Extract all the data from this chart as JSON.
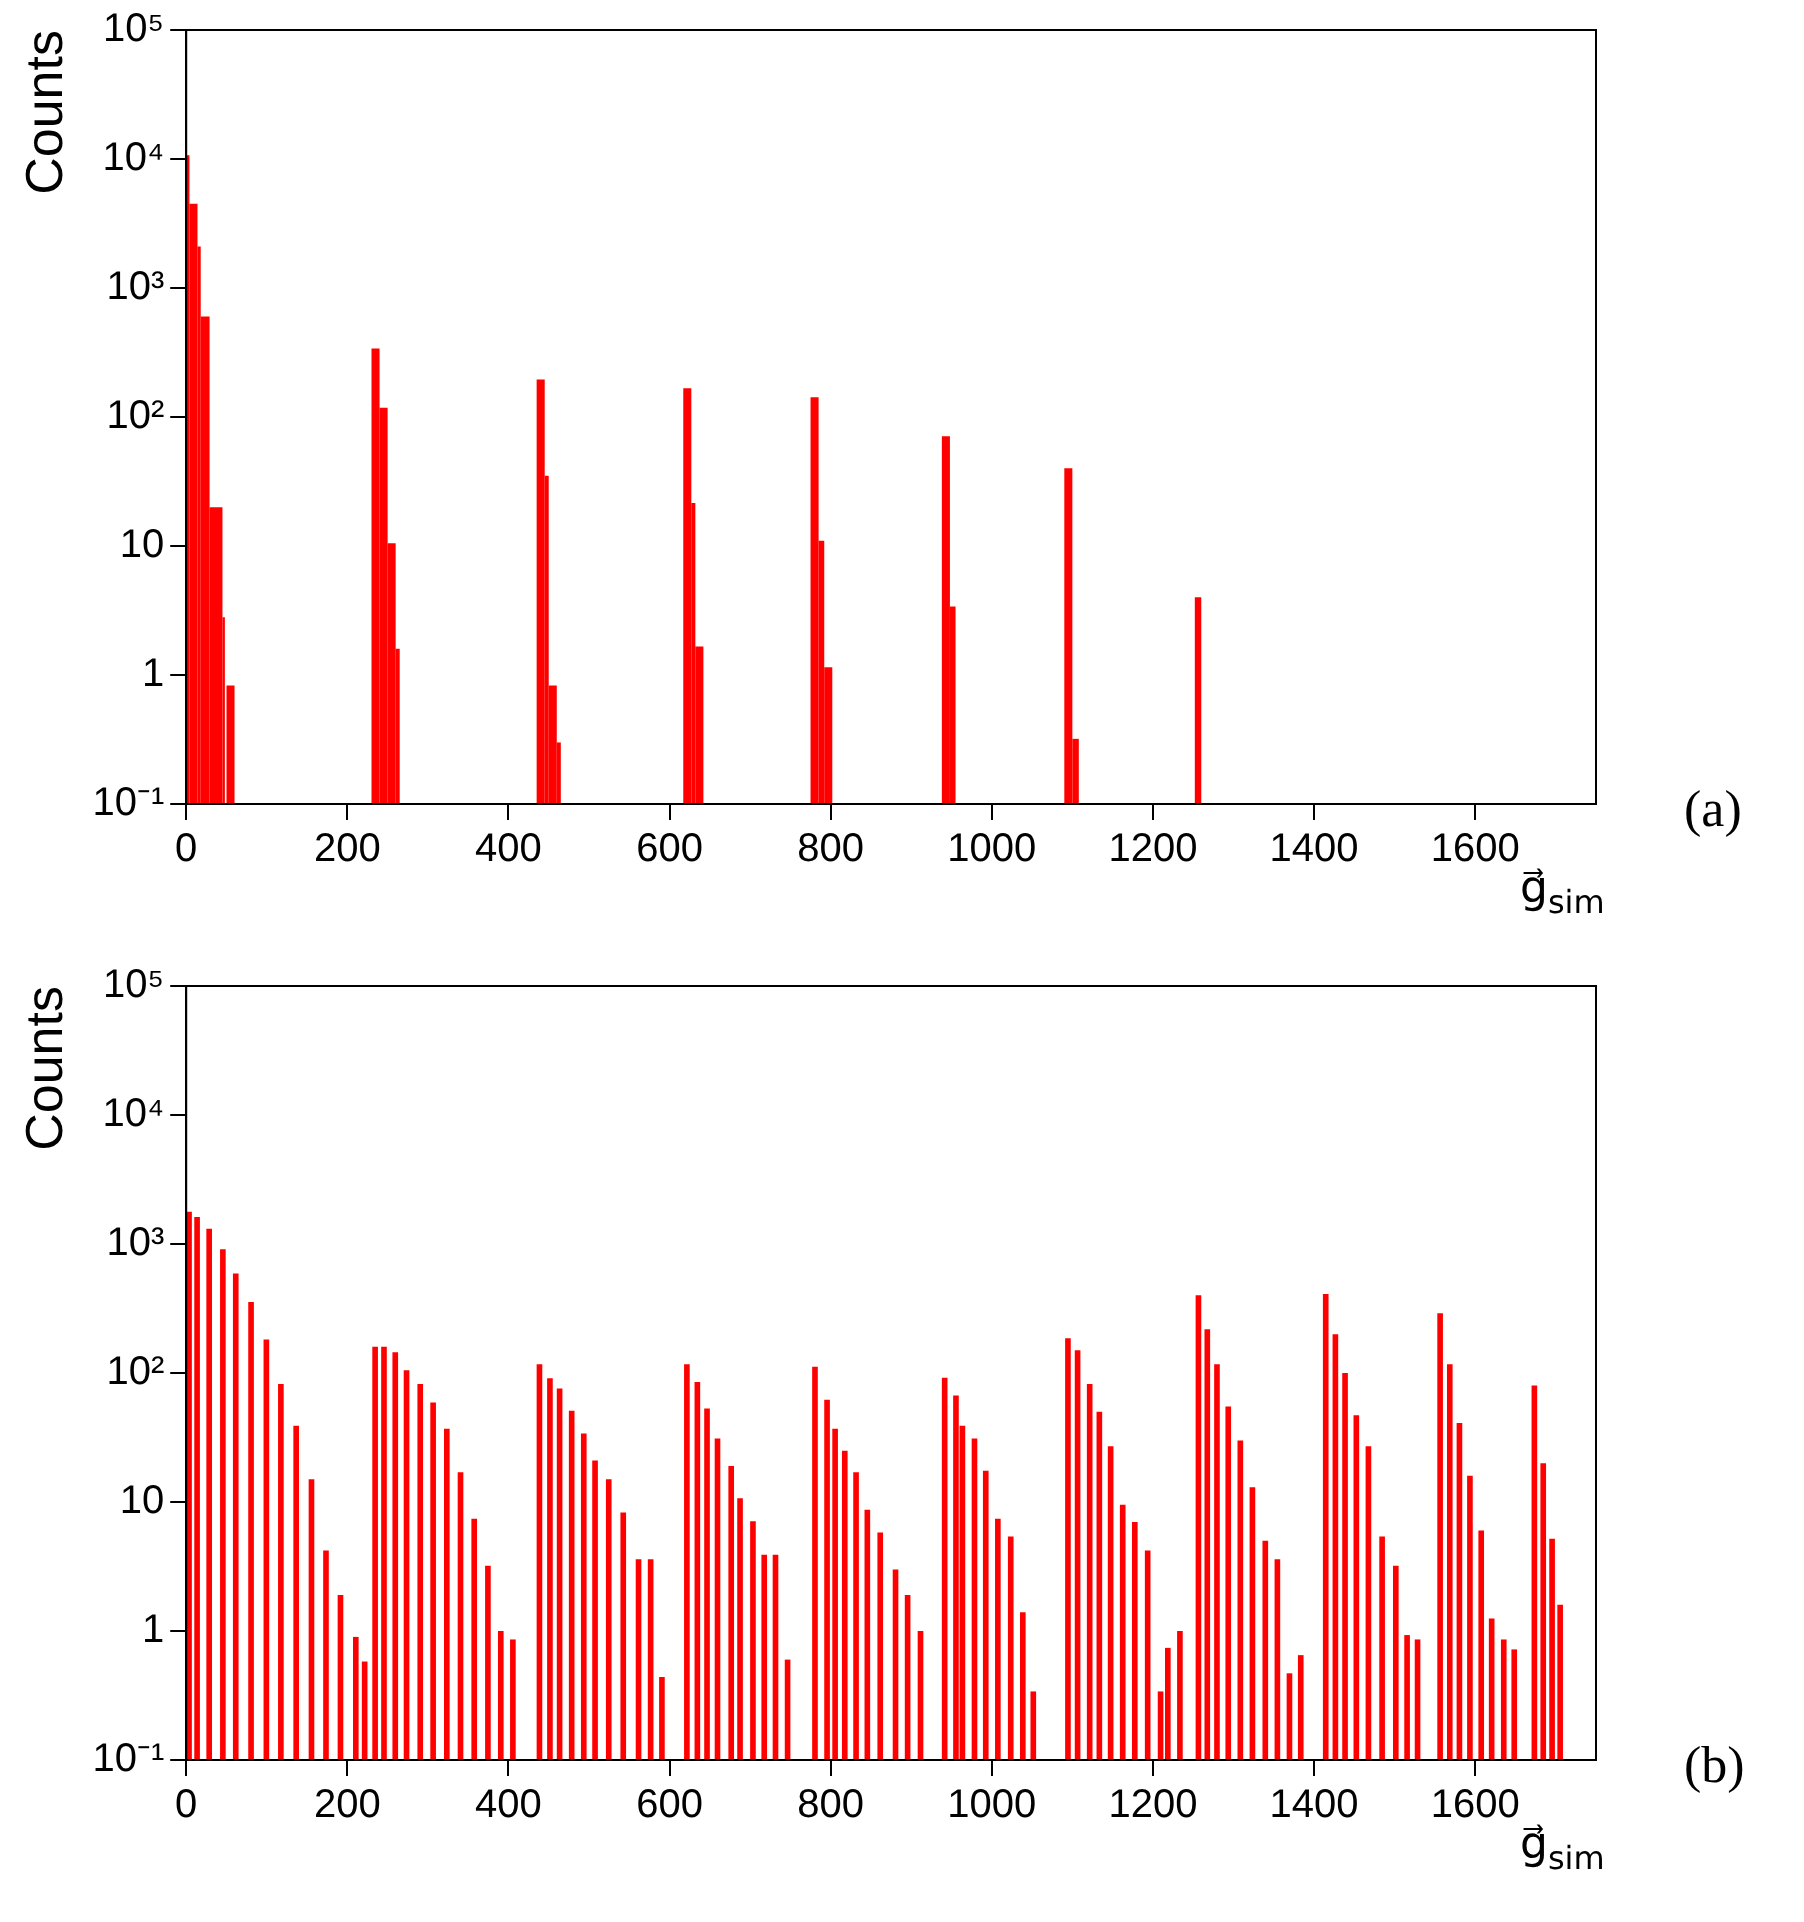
{
  "chart_data": [
    {
      "type": "histogram",
      "ylabel": "Counts",
      "xlabel": "g⃗$_{sim}$",
      "annotations": [
        "(a)"
      ],
      "color": "#ff0000",
      "log": true,
      "grid": false,
      "legend": false,
      "xlim": [
        0,
        1750
      ],
      "xticks": [
        0,
        200,
        400,
        600,
        800,
        1000,
        1200,
        1400,
        1600
      ],
      "ylim": [
        0.1,
        100000
      ],
      "yticks": [
        {
          "value": 0.1,
          "label": "10⁻¹"
        },
        {
          "value": 1,
          "label": "1"
        },
        {
          "value": 10,
          "label": "10"
        },
        {
          "value": 100,
          "label": "10²"
        },
        {
          "value": 1000,
          "label": "10³"
        },
        {
          "value": 10000,
          "label": "10⁴"
        },
        {
          "value": 100000,
          "label": "10⁵"
        }
      ],
      "bins": [
        0,
        4,
        14,
        18,
        29,
        45,
        48,
        50,
        60,
        230,
        240,
        250,
        260,
        265,
        435,
        445,
        450,
        460,
        465,
        617,
        627,
        632,
        642,
        775,
        785,
        792,
        802,
        938,
        948,
        955,
        1090,
        1100,
        1108,
        1252,
        1260
      ],
      "values": [
        10700,
        4500,
        2100,
        600,
        20,
        2.8,
        null,
        0.83,
        null,
        340,
        118,
        10.5,
        1.6,
        null,
        195,
        35,
        0.83,
        0.3,
        null,
        167,
        21.5,
        1.66,
        null,
        142,
        11,
        1.15,
        null,
        71,
        3.4,
        null,
        40,
        0.32,
        null,
        4
      ]
    },
    {
      "type": "histogram",
      "ylabel": "Counts",
      "xlabel": "g⃗$_{sim}$",
      "annotations": [
        "(b)"
      ],
      "color": "#ff0000",
      "log": true,
      "grid": false,
      "legend": false,
      "xlim": [
        0,
        1750
      ],
      "xticks": [
        0,
        200,
        400,
        600,
        800,
        1000,
        1200,
        1400,
        1600
      ],
      "ylim": [
        0.1,
        100000
      ],
      "yticks": [
        {
          "value": 0.1,
          "label": "10⁻¹"
        },
        {
          "value": 1,
          "label": "1"
        },
        {
          "value": 10,
          "label": "10"
        },
        {
          "value": 100,
          "label": "10²"
        },
        {
          "value": 1000,
          "label": "10³"
        },
        {
          "value": 10000,
          "label": "10⁴"
        },
        {
          "value": 100000,
          "label": "10⁵"
        }
      ],
      "bins": [
        0,
        7,
        10,
        17,
        25,
        32,
        42,
        49,
        58,
        65,
        77,
        84,
        96,
        103,
        114,
        121,
        133,
        140,
        152,
        159,
        170,
        177,
        188,
        195,
        207,
        214,
        218,
        225,
        231,
        238,
        242,
        249,
        256,
        263,
        270,
        277,
        287,
        294,
        303,
        310,
        320,
        327,
        337,
        344,
        354,
        361,
        371,
        378,
        387,
        394,
        402,
        409,
        435,
        442,
        448,
        455,
        460,
        467,
        475,
        482,
        490,
        497,
        504,
        511,
        521,
        528,
        539,
        546,
        558,
        565,
        573,
        580,
        587,
        594,
        618,
        625,
        631,
        638,
        643,
        650,
        656,
        663,
        673,
        680,
        684,
        691,
        700,
        707,
        714,
        721,
        728,
        735,
        743,
        750,
        777,
        784,
        792,
        799,
        802,
        809,
        814,
        821,
        828,
        835,
        842,
        849,
        858,
        865,
        877,
        884,
        892,
        899,
        908,
        915,
        938,
        945,
        952,
        959,
        960,
        967,
        975,
        982,
        989,
        996,
        1004,
        1011,
        1020,
        1027,
        1035,
        1042,
        1048,
        1055,
        1091,
        1098,
        1103,
        1110,
        1118,
        1125,
        1130,
        1137,
        1144,
        1151,
        1159,
        1166,
        1174,
        1181,
        1190,
        1197,
        1206,
        1213,
        1215,
        1222,
        1230,
        1237,
        1253,
        1260,
        1264,
        1271,
        1276,
        1283,
        1290,
        1297,
        1305,
        1312,
        1320,
        1327,
        1336,
        1343,
        1351,
        1358,
        1366,
        1373,
        1380,
        1387,
        1411,
        1418,
        1423,
        1430,
        1435,
        1442,
        1449,
        1456,
        1464,
        1471,
        1481,
        1488,
        1498,
        1505,
        1512,
        1519,
        1525,
        1532,
        1553,
        1560,
        1565,
        1572,
        1577,
        1584,
        1590,
        1597,
        1604,
        1611,
        1617,
        1624,
        1632,
        1639,
        1645,
        1652,
        1670,
        1677,
        1681,
        1688,
        1692,
        1699,
        1702,
        1709
      ],
      "values": [
        1780,
        null,
        1620,
        null,
        1310,
        null,
        910,
        null,
        590,
        null,
        355,
        null,
        182,
        null,
        82,
        null,
        39,
        null,
        15,
        null,
        4.2,
        null,
        1.9,
        null,
        0.9,
        null,
        0.58,
        null,
        160,
        null,
        160,
        null,
        145,
        null,
        105,
        null,
        82,
        null,
        59,
        null,
        37,
        null,
        17,
        null,
        7.4,
        null,
        3.2,
        null,
        1.0,
        null,
        0.86,
        null,
        117,
        null,
        91,
        null,
        76,
        null,
        51,
        null,
        34,
        null,
        21,
        null,
        15,
        null,
        8.3,
        null,
        3.6,
        null,
        3.6,
        null,
        0.44,
        null,
        117,
        null,
        85,
        null,
        53,
        null,
        31,
        null,
        19,
        null,
        10.7,
        null,
        7.1,
        null,
        3.9,
        null,
        3.9,
        null,
        0.6,
        null,
        112,
        null,
        62,
        null,
        37,
        null,
        25,
        null,
        17,
        null,
        8.7,
        null,
        5.8,
        null,
        3.0,
        null,
        1.9,
        null,
        1.0,
        null,
        92,
        null,
        67,
        null,
        39,
        null,
        31,
        null,
        17.5,
        null,
        7.4,
        null,
        5.4,
        null,
        1.4,
        null,
        0.34,
        null,
        186,
        null,
        150,
        null,
        82,
        null,
        50,
        null,
        27,
        null,
        9.5,
        null,
        7,
        null,
        4.2,
        null,
        0.34,
        null,
        0.74,
        null,
        1.0,
        null,
        400,
        null,
        218,
        null,
        117,
        null,
        55,
        null,
        30,
        null,
        13,
        null,
        5,
        null,
        3.6,
        null,
        0.47,
        null,
        0.65,
        null,
        410,
        null,
        200,
        null,
        100,
        null,
        47,
        null,
        27,
        null,
        5.4,
        null,
        3.2,
        null,
        0.93,
        null,
        0.86,
        null,
        290,
        null,
        117,
        null,
        41,
        null,
        16,
        null,
        6,
        null,
        1.25,
        null,
        0.86,
        null,
        0.72,
        null,
        80,
        null,
        20,
        null,
        5.2,
        null,
        1.6
      ]
    }
  ]
}
